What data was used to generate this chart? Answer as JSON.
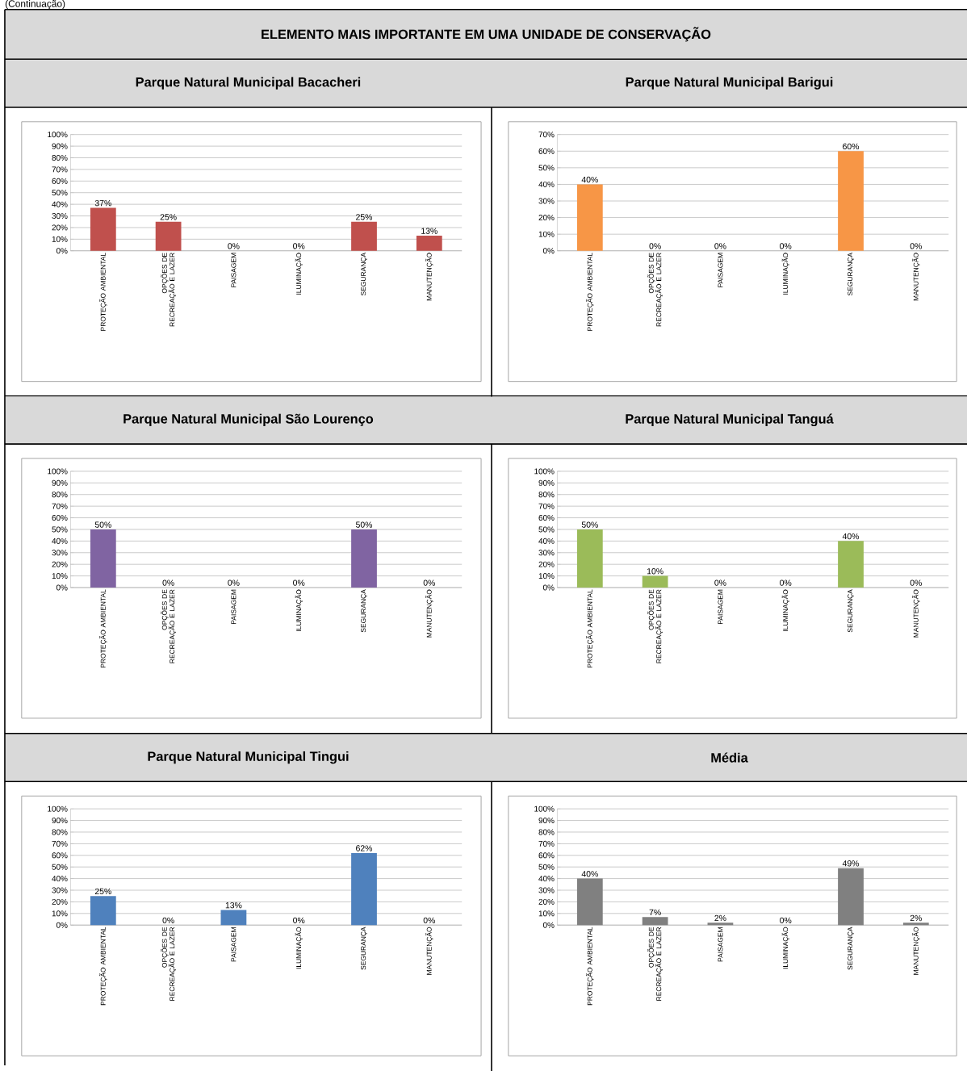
{
  "chart_data": [
    {
      "type": "bar",
      "title": "Parque Natural Municipal Bacacheri",
      "annotations": [
        "(Continuação)",
        "ELEMENTO MAIS IMPORTANTE EM UMA UNIDADE DE CONSERVAÇÃO"
      ],
      "categories": [
        "PROTEÇÃO AMBIENTAL",
        "OPÇÕES DE RECREAÇÃO E LAZER",
        "PAISAGEM",
        "ILUMINAÇÃO",
        "SEGURANÇA",
        "MANUTENÇÃO"
      ],
      "values": [
        37,
        25,
        0,
        0,
        25,
        13
      ],
      "value_labels": [
        "37%",
        "25%",
        "0%",
        "0%",
        "25%",
        "13%"
      ],
      "color": "#c0504d",
      "ylim": [
        0,
        100
      ],
      "yticks": [
        {
          "value": 0,
          "label": "0%"
        },
        {
          "value": 10,
          "label": "10%"
        },
        {
          "value": 20,
          "label": "20%"
        },
        {
          "value": 30,
          "label": "30%"
        },
        {
          "value": 40,
          "label": "40%"
        },
        {
          "value": 50,
          "label": "50%"
        },
        {
          "value": 60,
          "label": "60%"
        },
        {
          "value": 70,
          "label": "70%"
        },
        {
          "value": 80,
          "label": "80%"
        },
        {
          "value": 90,
          "label": "90%"
        },
        {
          "value": 100,
          "label": "100%"
        }
      ],
      "grid": "y"
    },
    {
      "type": "bar",
      "title": "Parque Natural Municipal Barigui",
      "categories": [
        "PROTEÇÃO AMBIENTAL",
        "OPÇÕES DE RECREAÇÃO E LAZER",
        "PAISAGEM",
        "ILUMINAÇÃO",
        "SEGURANÇA",
        "MANUTENÇÃO"
      ],
      "values": [
        40,
        0,
        0,
        0,
        60,
        0
      ],
      "value_labels": [
        "40%",
        "0%",
        "0%",
        "0%",
        "60%",
        "0%"
      ],
      "color": "#f79646",
      "ylim": [
        0,
        70
      ],
      "yticks": [
        {
          "value": 0,
          "label": "0%"
        },
        {
          "value": 10,
          "label": "10%"
        },
        {
          "value": 20,
          "label": "20%"
        },
        {
          "value": 30,
          "label": "30%"
        },
        {
          "value": 40,
          "label": "40%"
        },
        {
          "value": 50,
          "label": "50%"
        },
        {
          "value": 60,
          "label": "60%"
        },
        {
          "value": 70,
          "label": "70%"
        }
      ],
      "grid": "y"
    },
    {
      "type": "bar",
      "title": "Parque Natural Municipal São Lourenço",
      "categories": [
        "PROTEÇÃO AMBIENTAL",
        "OPÇÕES DE RECREAÇÃO E LAZER",
        "PAISAGEM",
        "ILUMINAÇÃO",
        "SEGURANÇA",
        "MANUTENÇÃO"
      ],
      "values": [
        50,
        0,
        0,
        0,
        50,
        0
      ],
      "value_labels": [
        "50%",
        "0%",
        "0%",
        "0%",
        "50%",
        "0%"
      ],
      "color": "#8064a2",
      "ylim": [
        0,
        100
      ],
      "yticks": [
        {
          "value": 0,
          "label": "0%"
        },
        {
          "value": 10,
          "label": "10%"
        },
        {
          "value": 20,
          "label": "20%"
        },
        {
          "value": 30,
          "label": "30%"
        },
        {
          "value": 40,
          "label": "40%"
        },
        {
          "value": 50,
          "label": "50%"
        },
        {
          "value": 60,
          "label": "60%"
        },
        {
          "value": 70,
          "label": "70%"
        },
        {
          "value": 80,
          "label": "80%"
        },
        {
          "value": 90,
          "label": "90%"
        },
        {
          "value": 100,
          "label": "100%"
        }
      ],
      "grid": "y"
    },
    {
      "type": "bar",
      "title": "Parque Natural Municipal Tanguá",
      "categories": [
        "PROTEÇÃO AMBIENTAL",
        "OPÇÕES DE RECREAÇÃO E LAZER",
        "PAISAGEM",
        "ILUMINAÇÃO",
        "SEGURANÇA",
        "MANUTENÇÃO"
      ],
      "values": [
        50,
        10,
        0,
        0,
        40,
        0
      ],
      "value_labels": [
        "50%",
        "10%",
        "0%",
        "0%",
        "40%",
        "0%"
      ],
      "color": "#9bbb59",
      "ylim": [
        0,
        100
      ],
      "yticks": [
        {
          "value": 0,
          "label": "0%"
        },
        {
          "value": 10,
          "label": "10%"
        },
        {
          "value": 20,
          "label": "20%"
        },
        {
          "value": 30,
          "label": "30%"
        },
        {
          "value": 40,
          "label": "40%"
        },
        {
          "value": 50,
          "label": "50%"
        },
        {
          "value": 60,
          "label": "60%"
        },
        {
          "value": 70,
          "label": "70%"
        },
        {
          "value": 80,
          "label": "80%"
        },
        {
          "value": 90,
          "label": "90%"
        },
        {
          "value": 100,
          "label": "100%"
        }
      ],
      "grid": "y"
    },
    {
      "type": "bar",
      "title": "Parque Natural Municipal Tingui",
      "categories": [
        "PROTEÇÃO AMBIENTAL",
        "OPÇÕES DE RECREAÇÃO E LAZER",
        "PAISAGEM",
        "ILUMINAÇÃO",
        "SEGURANÇA",
        "MANUTENÇÃO"
      ],
      "values": [
        25,
        0,
        13,
        0,
        62,
        0
      ],
      "value_labels": [
        "25%",
        "0%",
        "13%",
        "0%",
        "62%",
        "0%"
      ],
      "color": "#4f81bd",
      "ylim": [
        0,
        100
      ],
      "yticks": [
        {
          "value": 0,
          "label": "0%"
        },
        {
          "value": 10,
          "label": "10%"
        },
        {
          "value": 20,
          "label": "20%"
        },
        {
          "value": 30,
          "label": "30%"
        },
        {
          "value": 40,
          "label": "40%"
        },
        {
          "value": 50,
          "label": "50%"
        },
        {
          "value": 60,
          "label": "60%"
        },
        {
          "value": 70,
          "label": "70%"
        },
        {
          "value": 80,
          "label": "80%"
        },
        {
          "value": 90,
          "label": "90%"
        },
        {
          "value": 100,
          "label": "100%"
        }
      ],
      "grid": "y"
    },
    {
      "type": "bar",
      "title": "Média",
      "categories": [
        "PROTEÇÃO AMBIENTAL",
        "OPÇÕES DE RECREAÇÃO E LAZER",
        "PAISAGEM",
        "ILUMINAÇÃO",
        "SEGURANÇA",
        "MANUTENÇÃO"
      ],
      "values": [
        40,
        7,
        2,
        0,
        49,
        2
      ],
      "value_labels": [
        "40%",
        "7%",
        "2%",
        "0%",
        "49%",
        "2%"
      ],
      "color": "#808080",
      "ylim": [
        0,
        100
      ],
      "yticks": [
        {
          "value": 0,
          "label": "0%"
        },
        {
          "value": 10,
          "label": "10%"
        },
        {
          "value": 20,
          "label": "20%"
        },
        {
          "value": 30,
          "label": "30%"
        },
        {
          "value": 40,
          "label": "40%"
        },
        {
          "value": 50,
          "label": "50%"
        },
        {
          "value": 60,
          "label": "60%"
        },
        {
          "value": 70,
          "label": "70%"
        },
        {
          "value": 80,
          "label": "80%"
        },
        {
          "value": 90,
          "label": "90%"
        },
        {
          "value": 100,
          "label": "100%"
        }
      ],
      "grid": "y"
    }
  ]
}
